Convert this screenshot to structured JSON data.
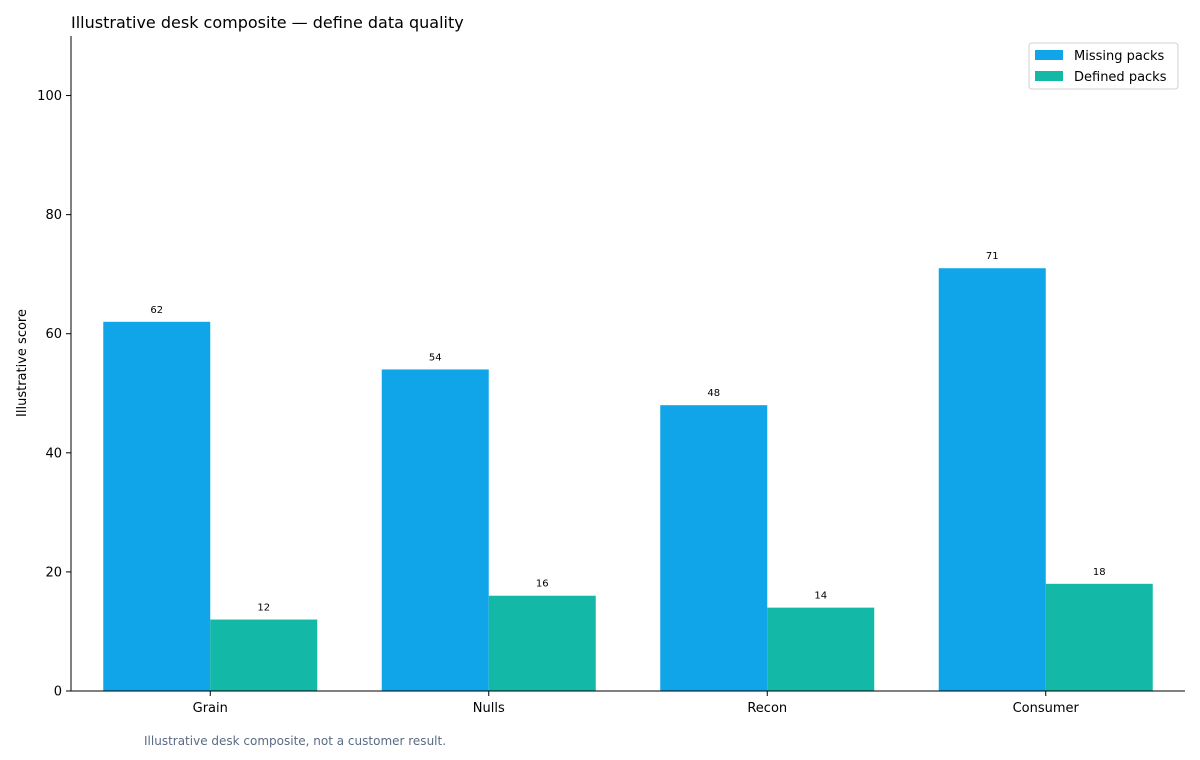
{
  "chart_data": {
    "type": "bar",
    "title": "Illustrative desk composite — define data quality",
    "xlabel": "",
    "ylabel": "Illustrative score",
    "categories": [
      "Grain",
      "Nulls",
      "Recon",
      "Consumer"
    ],
    "series": [
      {
        "name": "Missing packs",
        "color": "#10a5e8",
        "values": [
          62,
          54,
          48,
          71
        ]
      },
      {
        "name": "Defined packs",
        "color": "#14b8a6",
        "values": [
          12,
          16,
          14,
          18
        ]
      }
    ],
    "ylim": [
      0,
      110
    ],
    "yticks": [
      0,
      20,
      40,
      60,
      80,
      100
    ],
    "grid": false,
    "legend": "top-right",
    "footnote": "Illustrative desk composite, not a customer result."
  }
}
